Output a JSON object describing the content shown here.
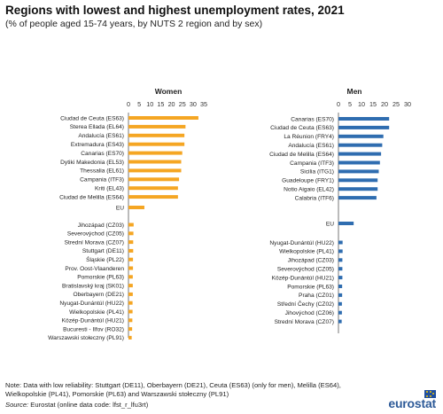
{
  "title": "Regions with lowest and highest unemployment rates, 2021",
  "subtitle": "(% of people aged 15-74 years, by NUTS 2 region and by sex)",
  "colors": {
    "women": "#f5a623",
    "men": "#2f6db0",
    "axis": "#555555",
    "grid": "#d9d9d9"
  },
  "chart_data": [
    {
      "type": "bar",
      "panel": "Women",
      "title": "Women",
      "xlim": [
        0,
        35
      ],
      "ticks": [
        0,
        5,
        10,
        15,
        20,
        25,
        30,
        35
      ],
      "grid": false,
      "highest": [
        {
          "label": "Ciudad de Ceuta (ES63)",
          "value": 32.5
        },
        {
          "label": "Sterea Ellada (EL64)",
          "value": 26.5
        },
        {
          "label": "Andalucía (ES61)",
          "value": 26.0
        },
        {
          "label": "Extremadura (ES43)",
          "value": 26.0
        },
        {
          "label": "Canarias (ES70)",
          "value": 25.0
        },
        {
          "label": "Dytiki Makedonia (EL53)",
          "value": 24.5
        },
        {
          "label": "Thessalia (EL61)",
          "value": 24.5
        },
        {
          "label": "Campania (ITF3)",
          "value": 23.5
        },
        {
          "label": "Kriti (EL43)",
          "value": 23.0
        },
        {
          "label": "Ciudad de Melilla (ES64)",
          "value": 23.0
        }
      ],
      "eu": {
        "label": "EU",
        "value": 7.4
      },
      "lowest": [
        {
          "label": "Jihozápad (CZ03)",
          "value": 2.4
        },
        {
          "label": "Severovýchod (CZ05)",
          "value": 2.3
        },
        {
          "label": "Strední Morava (CZ07)",
          "value": 2.2
        },
        {
          "label": "Stuttgart (DE11)",
          "value": 2.2
        },
        {
          "label": "Śląskie (PL22)",
          "value": 2.1
        },
        {
          "label": "Prov. Oost-Vlaanderen",
          "value": 2.1
        },
        {
          "label": "Pomorskie (PL63)",
          "value": 2.0
        },
        {
          "label": "Bratislavský kraj (SK01)",
          "value": 2.0
        },
        {
          "label": "Oberbayern (DE21)",
          "value": 2.0
        },
        {
          "label": "Nyugat-Dunántúl (HU22)",
          "value": 1.9
        },
        {
          "label": "Wielkopolskie (PL41)",
          "value": 1.9
        },
        {
          "label": "Közép-Dunántúl (HU21)",
          "value": 1.8
        },
        {
          "label": "Bucuresti - Ilfov (RO32)",
          "value": 1.7
        },
        {
          "label": "Warszawski stołeczny (PL91)",
          "value": 1.5
        }
      ]
    },
    {
      "type": "bar",
      "panel": "Men",
      "title": "Men",
      "xlim": [
        0,
        30
      ],
      "ticks": [
        0,
        5,
        10,
        15,
        20,
        25,
        30
      ],
      "grid": false,
      "highest": [
        {
          "label": "Canarias (ES70)",
          "value": 22.0
        },
        {
          "label": "Ciudad de Ceuta (ES63)",
          "value": 22.0
        },
        {
          "label": "La Réunion (FRY4)",
          "value": 19.5
        },
        {
          "label": "Andalucía (ES61)",
          "value": 19.0
        },
        {
          "label": "Ciudad de Melilla (ES64)",
          "value": 18.5
        },
        {
          "label": "Campania (ITF3)",
          "value": 18.0
        },
        {
          "label": "Sicilia (ITG1)",
          "value": 17.5
        },
        {
          "label": "Guadeloupe (FRY1)",
          "value": 17.0
        },
        {
          "label": "Notio Aigaio (EL42)",
          "value": 17.0
        },
        {
          "label": "Calabria (ITF6)",
          "value": 16.5
        }
      ],
      "eu": {
        "label": "EU",
        "value": 6.6
      },
      "lowest": [
        {
          "label": "Nyugat-Dunántúl (HU22)",
          "value": 1.8
        },
        {
          "label": "Wielkopolskie (PL41)",
          "value": 1.8
        },
        {
          "label": "Jihozápad (CZ03)",
          "value": 1.7
        },
        {
          "label": "Severovýchod (CZ05)",
          "value": 1.7
        },
        {
          "label": "Közép-Dunántúl (HU21)",
          "value": 1.7
        },
        {
          "label": "Pomorskie (PL63)",
          "value": 1.6
        },
        {
          "label": "Praha (CZ01)",
          "value": 1.6
        },
        {
          "label": "Střední Čechy (CZ02)",
          "value": 1.5
        },
        {
          "label": "Jihovýchod (CZ06)",
          "value": 1.5
        },
        {
          "label": "Strední Morava (CZ07)",
          "value": 1.4
        }
      ]
    }
  ],
  "note": "Note: Data with low reliability: Stuttgart (DE11), Oberbayern (DE21), Ceuta (ES63) (only for men), Melilla (ES64), Wielkopolskie (PL41), Pomorskie (PL63) and Warszawski stołeczny (PL91)",
  "source_label": "Source:",
  "source_text": " Eurostat (online data code: lfst_r_lfu3rt)",
  "logo_text": "eurostat"
}
